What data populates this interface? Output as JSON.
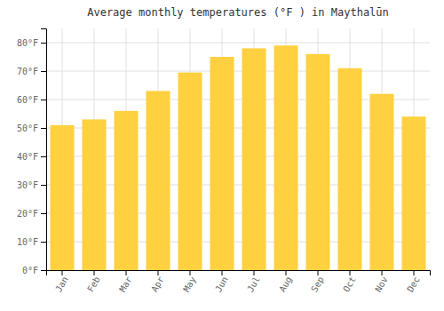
{
  "chart_data": {
    "type": "bar",
    "title": "Average monthly temperatures (°F ) in Maythalūn",
    "categories": [
      "Jan",
      "Feb",
      "Mar",
      "Apr",
      "May",
      "Jun",
      "Jul",
      "Aug",
      "Sep",
      "Oct",
      "Nov",
      "Dec"
    ],
    "values": [
      51,
      53,
      56,
      63,
      69.5,
      75,
      78,
      79,
      76,
      71,
      62,
      54
    ],
    "color": "#FFD040",
    "ylim": [
      0,
      85
    ],
    "yticks": [
      {
        "value": 0,
        "label": "0°F"
      },
      {
        "value": 10,
        "label": "10°F"
      },
      {
        "value": 20,
        "label": "20°F"
      },
      {
        "value": 30,
        "label": "30°F"
      },
      {
        "value": 40,
        "label": "40°F"
      },
      {
        "value": 50,
        "label": "50°F"
      },
      {
        "value": 60,
        "label": "60°F"
      },
      {
        "value": 70,
        "label": "70°F"
      },
      {
        "value": 80,
        "label": "80°F"
      }
    ],
    "grid": true
  }
}
